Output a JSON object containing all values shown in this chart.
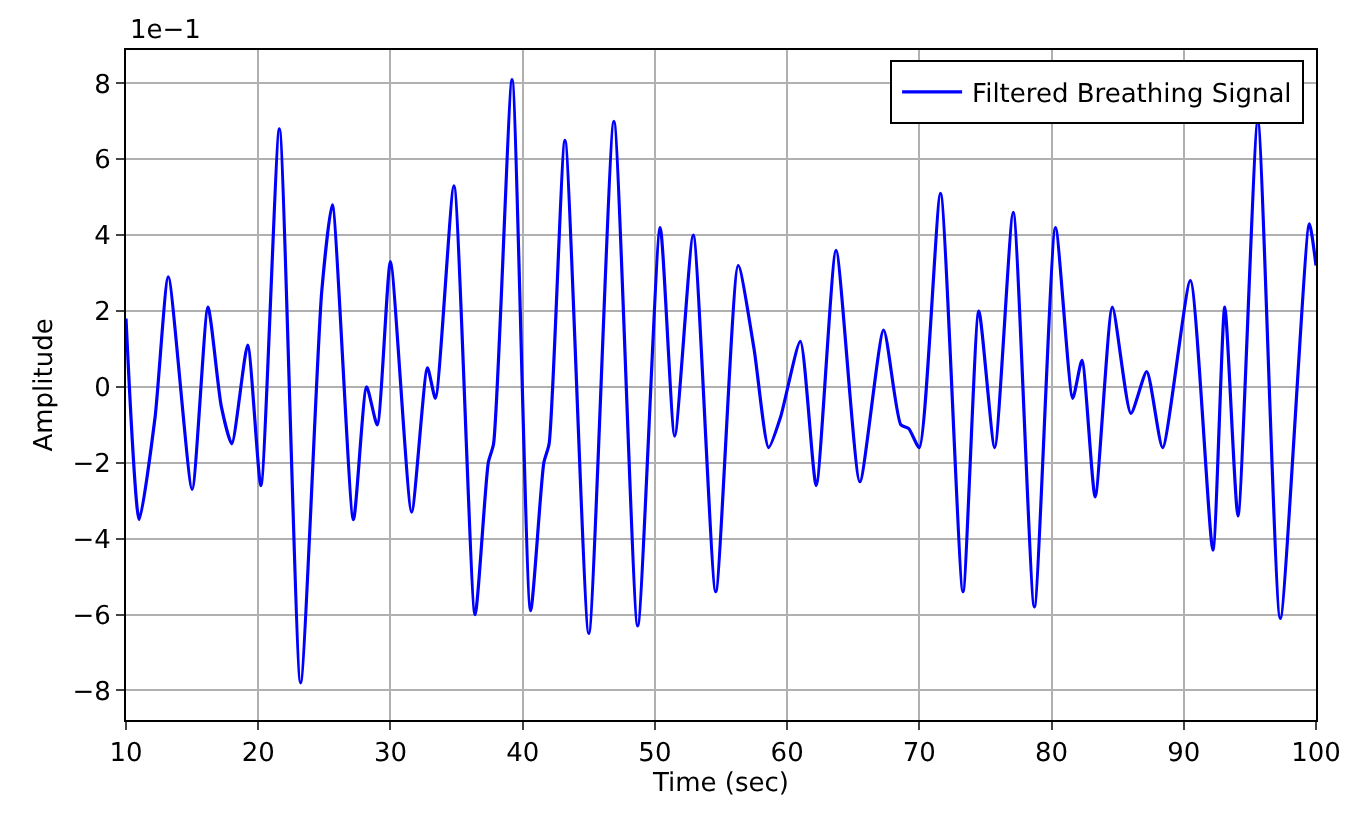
{
  "chart_data": {
    "type": "line",
    "xlabel": "Time (sec)",
    "ylabel": "Amplitude",
    "annotations": [
      "1e−1"
    ],
    "x": [
      10,
      11,
      12.2,
      13.2,
      15,
      16.2,
      17.2,
      18,
      19.2,
      20.2,
      21.6,
      23.2,
      24.8,
      25.6,
      27.2,
      28.2,
      29,
      30,
      31.6,
      32.8,
      33.4,
      34.8,
      36.4,
      37.4,
      37.8,
      39.2,
      40.6,
      41.6,
      42,
      43.2,
      45,
      46.9,
      48.7,
      50.4,
      51.5,
      52.9,
      54.6,
      56.3,
      57.5,
      58.6,
      59.5,
      61,
      62.2,
      63.7,
      65.5,
      67.3,
      68.6,
      69.2,
      70,
      71.6,
      73.3,
      74.5,
      75.7,
      77.1,
      78.7,
      80.3,
      81.6,
      82.3,
      83.3,
      84.6,
      86,
      87.2,
      88.4,
      90.5,
      92.2,
      93.1,
      94.1,
      95.6,
      97.3,
      99.5,
      100
    ],
    "series": [
      {
        "name": "Filtered Breathing Signal",
        "color": "#0000ff",
        "values": [
          1.8,
          -3.5,
          -0.8,
          2.9,
          -2.7,
          2.1,
          -0.5,
          -1.5,
          1.1,
          -2.6,
          6.8,
          -7.8,
          2.5,
          4.8,
          -3.5,
          0,
          -1.0,
          3.3,
          -3.3,
          0.5,
          -0.3,
          5.3,
          -6.0,
          -2.0,
          -1.5,
          8.1,
          -5.9,
          -2.0,
          -1.5,
          6.5,
          -6.5,
          7.0,
          -6.3,
          4.2,
          -1.3,
          4.0,
          -5.4,
          3.2,
          1.0,
          -1.6,
          -0.8,
          1.2,
          -2.6,
          3.6,
          -2.5,
          1.5,
          -1.0,
          -1.1,
          -1.6,
          5.1,
          -5.4,
          2.0,
          -1.6,
          4.6,
          -5.8,
          4.2,
          -0.3,
          0.7,
          -2.9,
          2.1,
          -0.7,
          0.4,
          -1.6,
          2.8,
          -4.3,
          2.1,
          -3.4,
          7.0,
          -6.1,
          4.3,
          3.2
        ]
      }
    ],
    "xlim": [
      10,
      100
    ],
    "xticks": [
      10,
      20,
      30,
      40,
      50,
      60,
      70,
      80,
      90,
      100
    ],
    "ylim": [
      -8.78,
      8.88
    ],
    "yticks": [
      -8,
      -6,
      -4,
      -2,
      0,
      2,
      4,
      6,
      8
    ],
    "grid": true,
    "legend": "top right",
    "marker": "none",
    "line_style": "solid"
  }
}
